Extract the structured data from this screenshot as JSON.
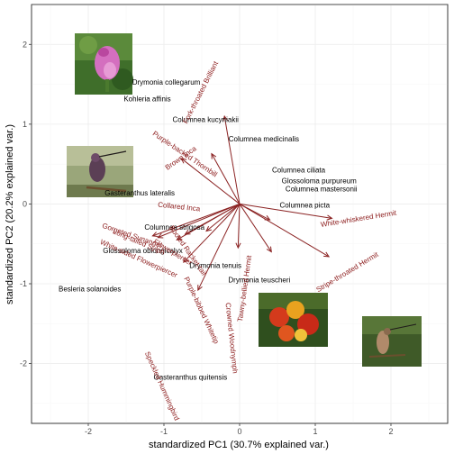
{
  "chart_data": {
    "type": "scatter",
    "subtype": "pca-biplot",
    "xlabel": "standardized PC1 (30.7% explained var.)",
    "ylabel": "standardized PC2 (20.2% explained var.)",
    "xlim": [
      -2.75,
      2.75
    ],
    "ylim": [
      -2.75,
      2.5
    ],
    "x_ticks": [
      -2,
      -1,
      0,
      1,
      2
    ],
    "y_ticks": [
      -2,
      -1,
      0,
      1,
      2
    ],
    "grid": true,
    "points": [
      {
        "label": "Drymonia collegarum",
        "x": -0.97,
        "y": 1.53
      },
      {
        "label": "Kohleria affinis",
        "x": -1.22,
        "y": 1.32
      },
      {
        "label": "Columnea kucyniakii",
        "x": -0.45,
        "y": 1.06
      },
      {
        "label": "Columnea medicinalis",
        "x": 0.32,
        "y": 0.82
      },
      {
        "label": "Columnea ciliata",
        "x": 0.78,
        "y": 0.43
      },
      {
        "label": "Glossoloma purpureum",
        "x": 1.05,
        "y": 0.29
      },
      {
        "label": "Columnea mastersonii",
        "x": 1.08,
        "y": 0.19
      },
      {
        "label": "Gasteranthus lateralis",
        "x": -1.32,
        "y": 0.14
      },
      {
        "label": "Columnea picta",
        "x": 0.86,
        "y": -0.01
      },
      {
        "label": "Columnea strigosa",
        "x": -0.86,
        "y": -0.29
      },
      {
        "label": "Glossoloma oblongicalyx",
        "x": -1.28,
        "y": -0.58
      },
      {
        "label": "Drymonia tenuis",
        "x": -0.32,
        "y": -0.77
      },
      {
        "label": "Drymonia teuscheri",
        "x": 0.26,
        "y": -0.95
      },
      {
        "label": "Besleria solanoides",
        "x": -1.98,
        "y": -1.06
      },
      {
        "label": "Gasteranthus quitensis",
        "x": -0.65,
        "y": -2.17
      }
    ],
    "loadings": [
      {
        "label": "Fork-throated Brilliant",
        "x": -0.52,
        "y": 1.4,
        "rotation": 63
      },
      {
        "label": "Brown Inca",
        "x": -0.78,
        "y": 0.58,
        "rotation": 35
      },
      {
        "label": "Collared Inca",
        "x": -0.8,
        "y": -0.03,
        "rotation": -6
      },
      {
        "label": "Gorgeted Sunangel",
        "x": -1.42,
        "y": -0.39,
        "rotation": -19
      },
      {
        "label": "Purple-backed Thornbill",
        "x": -0.72,
        "y": 0.63,
        "rotation": -34
      },
      {
        "label": "Booted Racket-tail",
        "x": -0.68,
        "y": -0.58,
        "rotation": -55
      },
      {
        "label": "Long-tailed Sylph",
        "x": -1.33,
        "y": -0.47,
        "rotation": -23
      },
      {
        "label": "Flowerpiercer",
        "x": -0.88,
        "y": -0.6,
        "rotation": -31
      },
      {
        "label": "White-sided Flowerpiercer",
        "x": -1.33,
        "y": -0.68,
        "rotation": -24
      },
      {
        "label": "Tawny-bellied Hermit",
        "x": 0.06,
        "y": -1.06,
        "rotation": 82
      },
      {
        "label": "Purple-bibbed Whitetip",
        "x": -0.5,
        "y": -1.33,
        "rotation": -65
      },
      {
        "label": "Crowned Woodnymph",
        "x": -0.1,
        "y": -1.68,
        "rotation": -84
      },
      {
        "label": "Speckled Hummingbird",
        "x": -1.02,
        "y": -2.28,
        "rotation": -66
      },
      {
        "label": "White-whiskered Hermit",
        "x": 1.57,
        "y": -0.18,
        "rotation": 9
      },
      {
        "label": "Stripe-throated Hermit",
        "x": 1.42,
        "y": -0.85,
        "rotation": 31
      }
    ],
    "arrows": [
      {
        "x": -0.2,
        "y": 1.1
      },
      {
        "x": -0.77,
        "y": 0.57
      },
      {
        "x": -0.37,
        "y": 0.63
      },
      {
        "x": -1.15,
        "y": -0.4
      },
      {
        "x": -1.08,
        "y": -0.42
      },
      {
        "x": -0.72,
        "y": -0.38
      },
      {
        "x": -0.83,
        "y": -0.45
      },
      {
        "x": -0.44,
        "y": -0.34
      },
      {
        "x": -0.74,
        "y": -0.73
      },
      {
        "x": -0.55,
        "y": -1.08
      },
      {
        "x": -0.02,
        "y": -0.55
      },
      {
        "x": 0.4,
        "y": -0.2
      },
      {
        "x": 0.42,
        "y": -0.6
      },
      {
        "x": 1.22,
        "y": -0.18
      },
      {
        "x": 1.18,
        "y": -0.66
      }
    ]
  }
}
